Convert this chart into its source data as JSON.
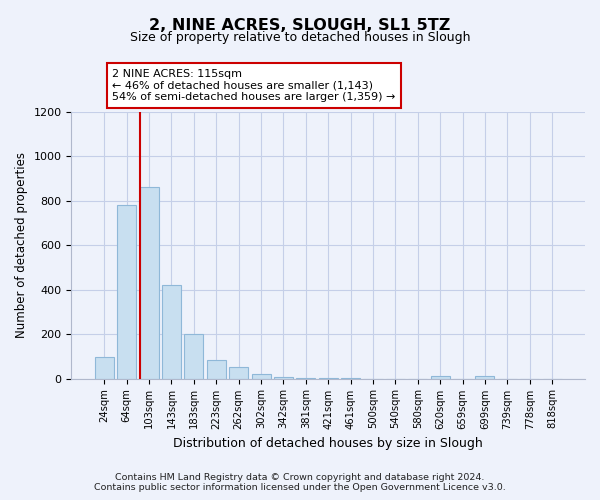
{
  "title": "2, NINE ACRES, SLOUGH, SL1 5TZ",
  "subtitle": "Size of property relative to detached houses in Slough",
  "xlabel": "Distribution of detached houses by size in Slough",
  "ylabel": "Number of detached properties",
  "bar_labels": [
    "24sqm",
    "64sqm",
    "103sqm",
    "143sqm",
    "183sqm",
    "223sqm",
    "262sqm",
    "302sqm",
    "342sqm",
    "381sqm",
    "421sqm",
    "461sqm",
    "500sqm",
    "540sqm",
    "580sqm",
    "620sqm",
    "659sqm",
    "699sqm",
    "739sqm",
    "778sqm",
    "818sqm"
  ],
  "bar_values": [
    95,
    780,
    860,
    420,
    200,
    85,
    52,
    22,
    8,
    3,
    1,
    1,
    0,
    0,
    0,
    10,
    0,
    10,
    0,
    0,
    0
  ],
  "bar_color": "#c8dff0",
  "bar_edge_color": "#8fb8d8",
  "vline_x_idx": 2,
  "vline_color": "#cc0000",
  "annotation_text": "2 NINE ACRES: 115sqm\n← 46% of detached houses are smaller (1,143)\n54% of semi-detached houses are larger (1,359) →",
  "annotation_box_color": "#ffffff",
  "annotation_box_edge": "#cc0000",
  "ylim": [
    0,
    1200
  ],
  "yticks": [
    0,
    200,
    400,
    600,
    800,
    1000,
    1200
  ],
  "footer": "Contains HM Land Registry data © Crown copyright and database right 2024.\nContains public sector information licensed under the Open Government Licence v3.0.",
  "bg_color": "#eef2fb"
}
